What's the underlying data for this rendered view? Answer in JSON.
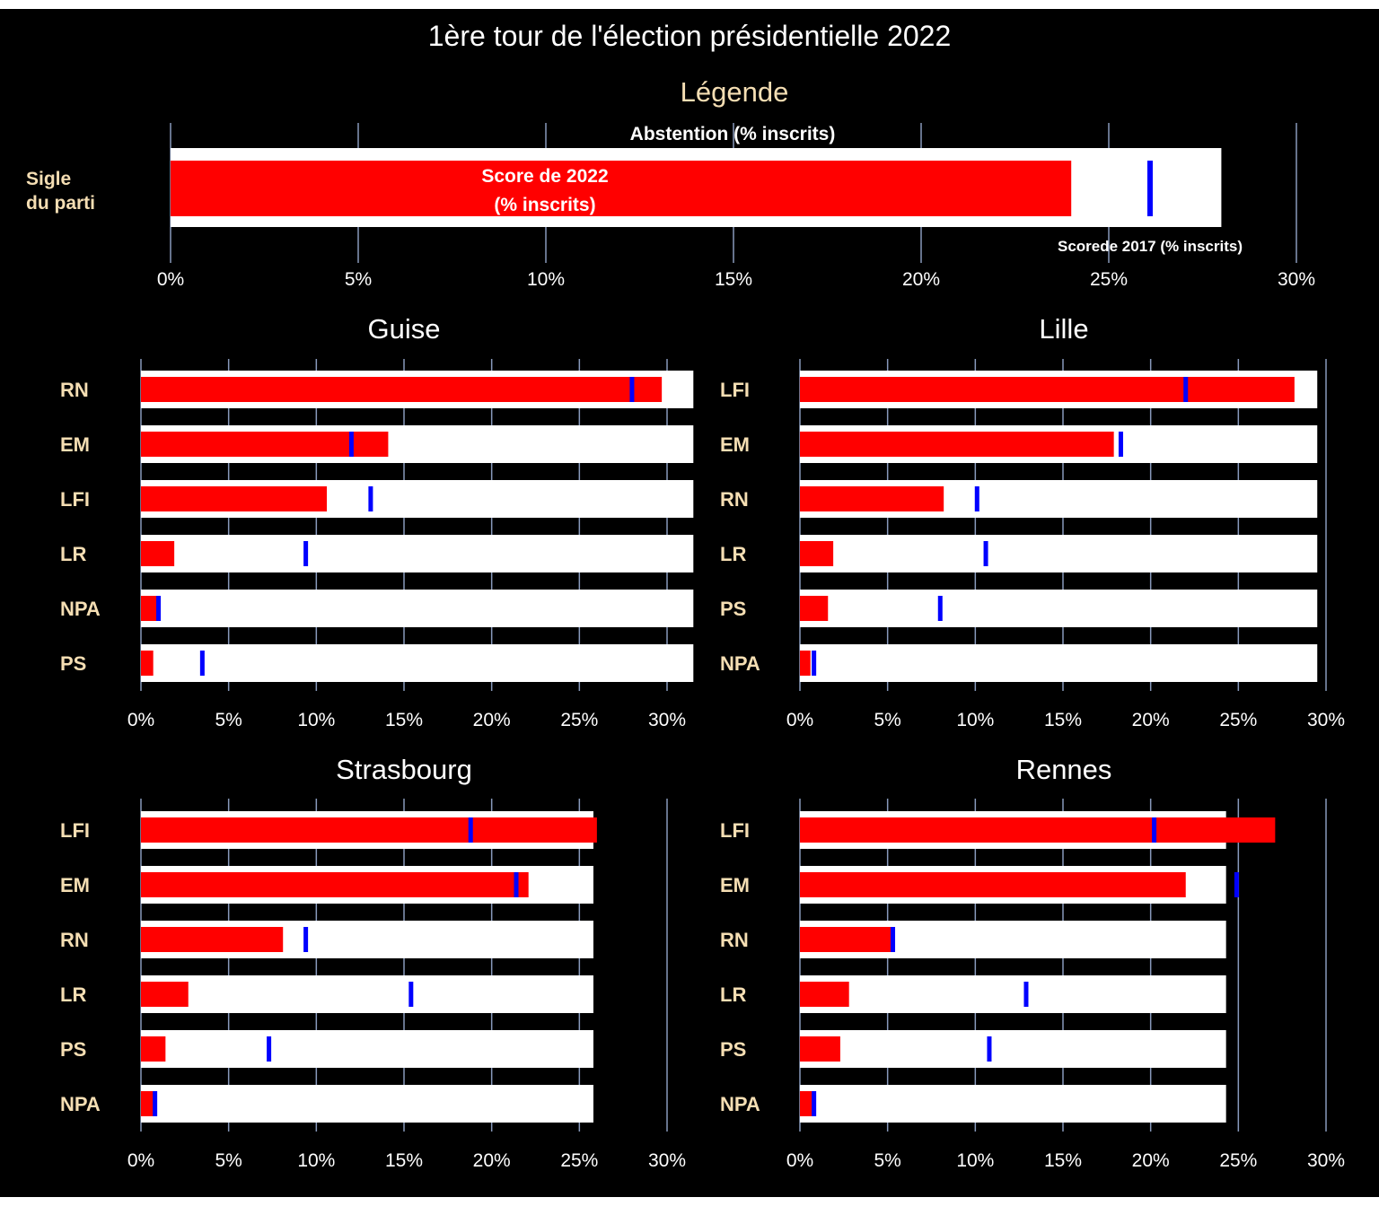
{
  "chart_data": {
    "type": "bar",
    "title": "1ère tour de l'élection présidentielle  2022",
    "xticks": [
      "0%",
      "5%",
      "10%",
      "15%",
      "20%",
      "25%",
      "30%"
    ],
    "colors": {
      "abstention": "#ffffff",
      "score_2022": "#ff0000",
      "score_2017": "#0000ff",
      "party_label": "#f5deb3",
      "grid": "#8899bb"
    },
    "legend": {
      "title": "Légende",
      "sigle_line1": "Sigle",
      "sigle_line2": "du parti",
      "abstention_label": "Abstention (% inscrits)",
      "score2022_line1": "Score de 2022",
      "score2022_line2": "(% inscrits)",
      "score2017_label": "Scorede 2017 (% inscrits)",
      "example": {
        "abstention": 28.0,
        "score_2022": 24.0,
        "score_2017": 26.1
      }
    },
    "panels": [
      {
        "title": "Guise",
        "xlim": [
          0,
          31.5
        ],
        "rows": [
          {
            "party": "RN",
            "abstention": 31.5,
            "score_2022": 29.7,
            "score_2017": 28.0
          },
          {
            "party": "EM",
            "abstention": 31.5,
            "score_2022": 14.1,
            "score_2017": 12.0
          },
          {
            "party": "LFI",
            "abstention": 31.5,
            "score_2022": 10.6,
            "score_2017": 13.1
          },
          {
            "party": "LR",
            "abstention": 31.5,
            "score_2022": 1.9,
            "score_2017": 9.4
          },
          {
            "party": "NPA",
            "abstention": 31.5,
            "score_2022": 0.9,
            "score_2017": 1.0
          },
          {
            "party": "PS",
            "abstention": 31.5,
            "score_2022": 0.7,
            "score_2017": 3.5
          }
        ]
      },
      {
        "title": "Lille",
        "xlim": [
          0,
          30
        ],
        "rows": [
          {
            "party": "LFI",
            "abstention": 29.5,
            "score_2022": 28.2,
            "score_2017": 22.0
          },
          {
            "party": "EM",
            "abstention": 29.5,
            "score_2022": 17.9,
            "score_2017": 18.3
          },
          {
            "party": "RN",
            "abstention": 29.5,
            "score_2022": 8.2,
            "score_2017": 10.1
          },
          {
            "party": "LR",
            "abstention": 29.5,
            "score_2022": 1.9,
            "score_2017": 10.6
          },
          {
            "party": "PS",
            "abstention": 29.5,
            "score_2022": 1.6,
            "score_2017": 8.0
          },
          {
            "party": "NPA",
            "abstention": 29.5,
            "score_2022": 0.6,
            "score_2017": 0.8
          }
        ]
      },
      {
        "title": "Strasbourg",
        "xlim": [
          0,
          30
        ],
        "rows": [
          {
            "party": "LFI",
            "abstention": 25.8,
            "score_2022": 26.0,
            "score_2017": 18.8
          },
          {
            "party": "EM",
            "abstention": 25.8,
            "score_2022": 22.1,
            "score_2017": 21.4
          },
          {
            "party": "RN",
            "abstention": 25.8,
            "score_2022": 8.1,
            "score_2017": 9.4
          },
          {
            "party": "LR",
            "abstention": 25.8,
            "score_2022": 2.7,
            "score_2017": 15.4
          },
          {
            "party": "PS",
            "abstention": 25.8,
            "score_2022": 1.4,
            "score_2017": 7.3
          },
          {
            "party": "NPA",
            "abstention": 25.8,
            "score_2022": 0.7,
            "score_2017": 0.8
          }
        ]
      },
      {
        "title": "Rennes",
        "xlim": [
          0,
          30
        ],
        "rows": [
          {
            "party": "LFI",
            "abstention": 24.3,
            "score_2022": 27.1,
            "score_2017": 20.2
          },
          {
            "party": "EM",
            "abstention": 24.3,
            "score_2022": 22.0,
            "score_2017": 24.9
          },
          {
            "party": "RN",
            "abstention": 24.3,
            "score_2022": 5.2,
            "score_2017": 5.3
          },
          {
            "party": "LR",
            "abstention": 24.3,
            "score_2022": 2.8,
            "score_2017": 12.9
          },
          {
            "party": "PS",
            "abstention": 24.3,
            "score_2022": 2.3,
            "score_2017": 10.8
          },
          {
            "party": "NPA",
            "abstention": 24.3,
            "score_2022": 0.7,
            "score_2017": 0.8
          }
        ]
      }
    ]
  }
}
